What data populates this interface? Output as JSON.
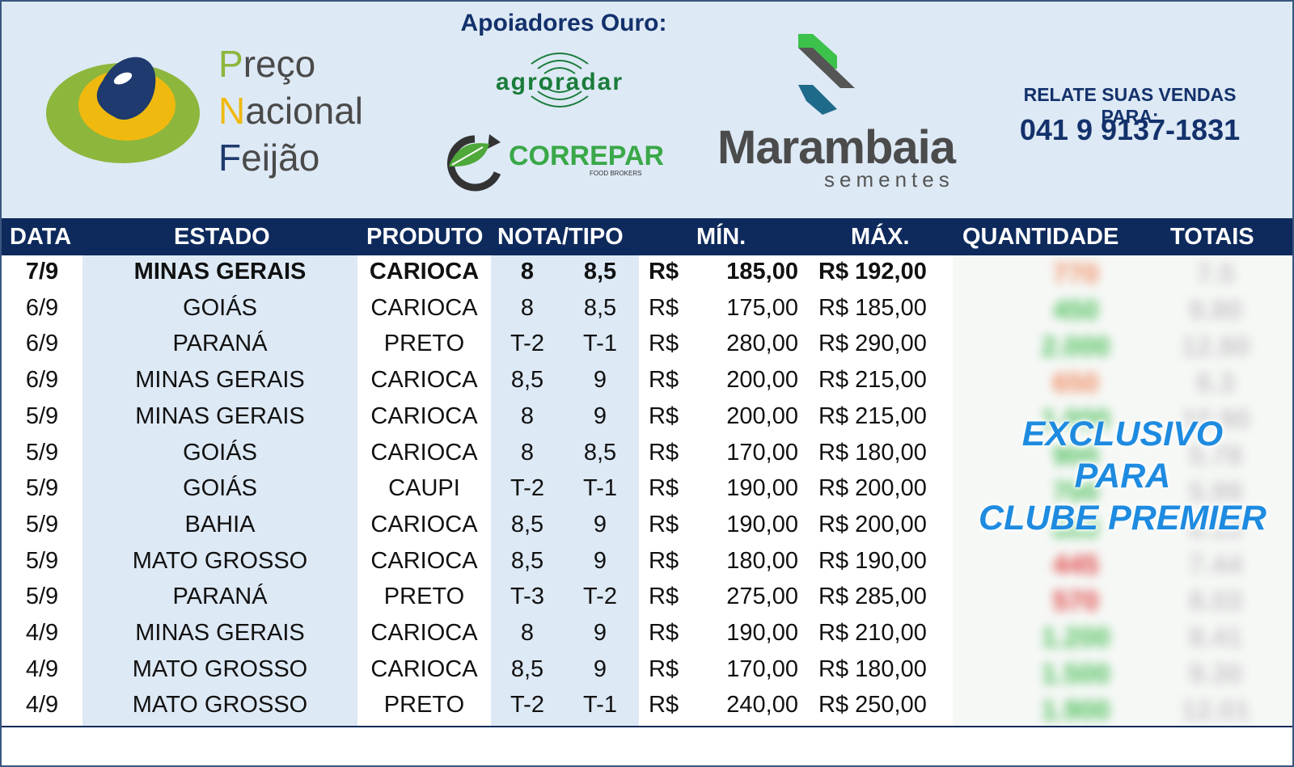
{
  "header": {
    "brand_lines": [
      {
        "cap": "P",
        "rest": "reço"
      },
      {
        "cap": "N",
        "rest": "acional"
      },
      {
        "cap": "F",
        "rest": "eijão"
      }
    ],
    "supporters_title": "Apoiadores Ouro:",
    "supporter_1": "agroradar",
    "supporter_2": "CORREPAR",
    "supporter_2_sub": "FOOD BROKERS",
    "supporter_3": "Marambaia",
    "supporter_3_sub": "sementes",
    "relate_label": "RELATE SUAS VENDAS PARA:",
    "phone": "041 9 9137-1831"
  },
  "colors": {
    "header_bg": "#dde9f5",
    "table_head_bg": "#0e2a5c",
    "col_band": "#dde9f5",
    "exclusive_text": "#1e8be0"
  },
  "columns": {
    "data": "DATA",
    "estado": "ESTADO",
    "produto": "PRODUTO",
    "nota": "NOTA/TIPO",
    "min": "MÍN.",
    "max": "MÁX.",
    "quantidade": "QUANTIDADE",
    "totais": "TOTAIS"
  },
  "rows": [
    {
      "date": "7/9",
      "state": "MINAS GERAIS",
      "product": "CARIOCA",
      "n1": "8",
      "n2": "8,5",
      "rs": "R$",
      "min": "185,00",
      "max": "R$ 192,00"
    },
    {
      "date": "6/9",
      "state": "GOIÁS",
      "product": "CARIOCA",
      "n1": "8",
      "n2": "8,5",
      "rs": "R$",
      "min": "175,00",
      "max": "R$ 185,00"
    },
    {
      "date": "6/9",
      "state": "PARANÁ",
      "product": "PRETO",
      "n1": "T-2",
      "n2": "T-1",
      "rs": "R$",
      "min": "280,00",
      "max": "R$ 290,00"
    },
    {
      "date": "6/9",
      "state": "MINAS GERAIS",
      "product": "CARIOCA",
      "n1": "8,5",
      "n2": "9",
      "rs": "R$",
      "min": "200,00",
      "max": "R$ 215,00"
    },
    {
      "date": "5/9",
      "state": "MINAS GERAIS",
      "product": "CARIOCA",
      "n1": "8",
      "n2": "9",
      "rs": "R$",
      "min": "200,00",
      "max": "R$ 215,00"
    },
    {
      "date": "5/9",
      "state": "GOIÁS",
      "product": "CARIOCA",
      "n1": "8",
      "n2": "8,5",
      "rs": "R$",
      "min": "170,00",
      "max": "R$ 180,00"
    },
    {
      "date": "5/9",
      "state": "GOIÁS",
      "product": "CAUPI",
      "n1": "T-2",
      "n2": "T-1",
      "rs": "R$",
      "min": "190,00",
      "max": "R$ 200,00"
    },
    {
      "date": "5/9",
      "state": "BAHIA",
      "product": "CARIOCA",
      "n1": "8,5",
      "n2": "9",
      "rs": "R$",
      "min": "190,00",
      "max": "R$ 200,00"
    },
    {
      "date": "5/9",
      "state": "MATO GROSSO",
      "product": "CARIOCA",
      "n1": "8,5",
      "n2": "9",
      "rs": "R$",
      "min": "180,00",
      "max": "R$ 190,00"
    },
    {
      "date": "5/9",
      "state": "PARANÁ",
      "product": "PRETO",
      "n1": "T-3",
      "n2": "T-2",
      "rs": "R$",
      "min": "275,00",
      "max": "R$ 285,00"
    },
    {
      "date": "4/9",
      "state": "MINAS GERAIS",
      "product": "CARIOCA",
      "n1": "8",
      "n2": "9",
      "rs": "R$",
      "min": "190,00",
      "max": "R$ 210,00"
    },
    {
      "date": "4/9",
      "state": "MATO GROSSO",
      "product": "CARIOCA",
      "n1": "8,5",
      "n2": "9",
      "rs": "R$",
      "min": "170,00",
      "max": "R$ 180,00"
    },
    {
      "date": "4/9",
      "state": "MATO GROSSO",
      "product": "PRETO",
      "n1": "T-2",
      "n2": "T-1",
      "rs": "R$",
      "min": "240,00",
      "max": "R$ 250,00"
    }
  ],
  "premium": {
    "line1": "EXCLUSIVO",
    "line2": "PARA",
    "line3": "CLUBE PREMIER"
  }
}
